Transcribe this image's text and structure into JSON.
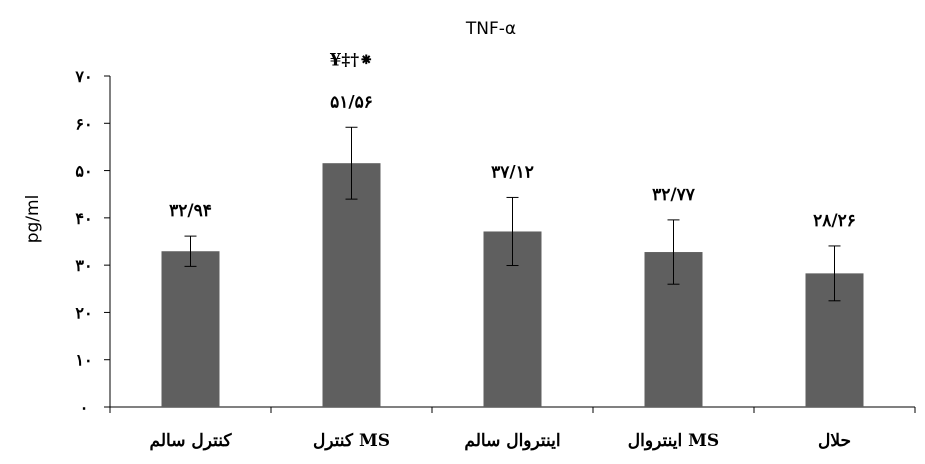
{
  "chart_data": {
    "type": "bar",
    "title": "TNF-α",
    "ylabel": "pg/ml",
    "xlabel": "",
    "ylim": [
      0,
      70
    ],
    "yticks": [
      0,
      10,
      20,
      30,
      40,
      50,
      60,
      70
    ],
    "ytick_labels": [
      "۰",
      "۱۰",
      "۲۰",
      "۳۰",
      "۴۰",
      "۵۰",
      "۶۰",
      "۷۰"
    ],
    "categories": [
      "کنترل سالم",
      "کنترل MS",
      "اینتروال سالم",
      "اینتروال MS",
      "حلال"
    ],
    "values": [
      32.94,
      51.56,
      37.12,
      32.77,
      28.26
    ],
    "errors": [
      3.2,
      7.6,
      7.2,
      6.8,
      5.8
    ],
    "data_labels": [
      "۳۲/۹۴",
      "۵۱/۵۶",
      "۳۷/۱۲",
      "۳۲/۷۷",
      "۲۸/۲۶"
    ],
    "significance_labels": [
      "",
      "¥‡†⁕",
      "",
      "",
      ""
    ],
    "bar_color": "#5f5f5f",
    "grid": false,
    "legend": "none"
  }
}
